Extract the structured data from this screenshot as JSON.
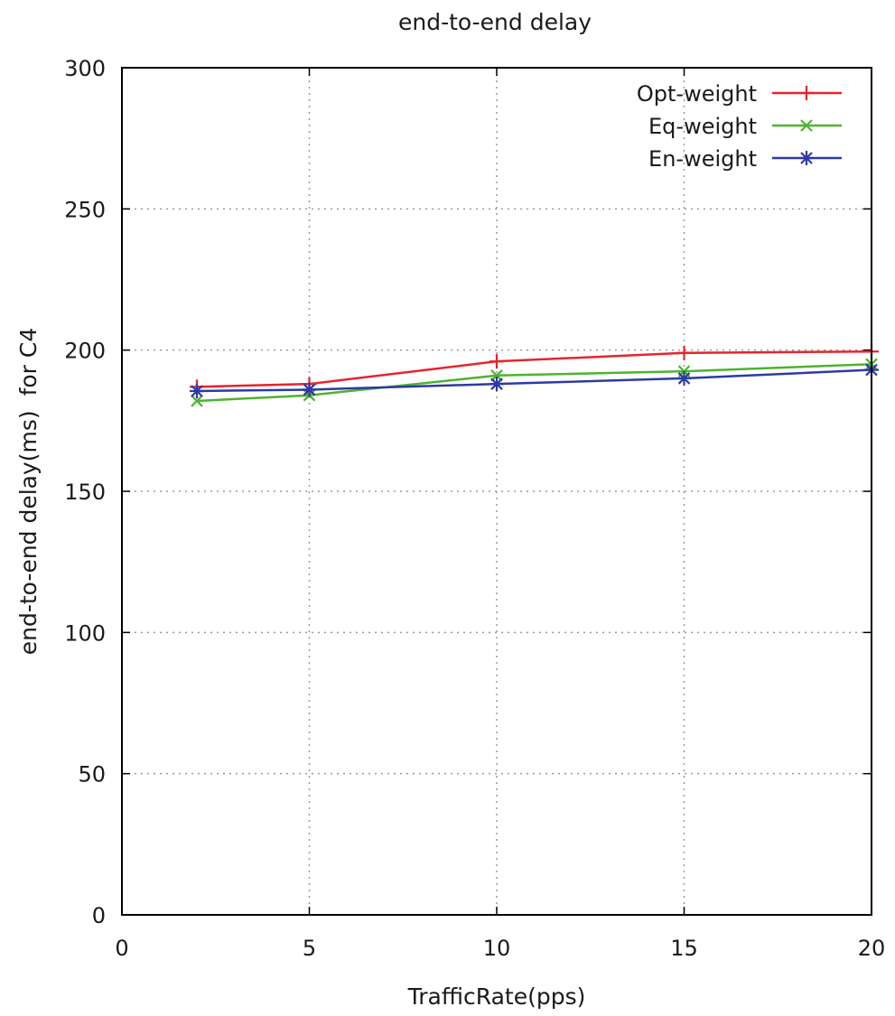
{
  "chart_data": {
    "type": "line",
    "title": "end-to-end delay",
    "xlabel": "TrafficRate(pps)",
    "ylabel": "end-to-end delay(ms)  for C4",
    "xlim": [
      0,
      20
    ],
    "ylim": [
      0,
      300
    ],
    "xticks": [
      0,
      5,
      10,
      15,
      20
    ],
    "yticks": [
      0,
      50,
      100,
      150,
      200,
      250,
      300
    ],
    "grid": true,
    "legend_position": "top-right",
    "x": [
      2,
      5,
      10,
      15,
      20
    ],
    "series": [
      {
        "name": "Opt-weight",
        "color": "#e8232b",
        "marker": "plus",
        "values": [
          187,
          188,
          196,
          199,
          199.5
        ]
      },
      {
        "name": "Eq-weight",
        "color": "#4db32e",
        "marker": "cross",
        "values": [
          182,
          184,
          191,
          192.5,
          195
        ]
      },
      {
        "name": "En-weight",
        "color": "#2d3aa3",
        "marker": "star",
        "values": [
          185.5,
          186,
          188,
          190,
          193
        ]
      }
    ]
  }
}
